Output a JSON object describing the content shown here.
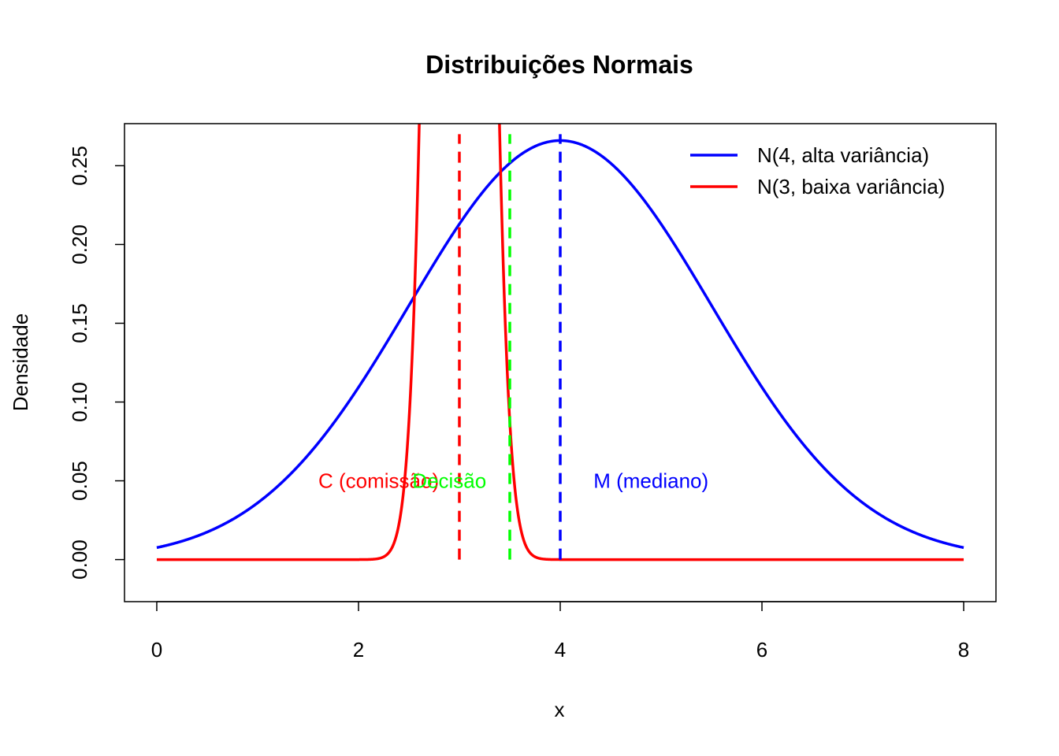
{
  "chart_data": {
    "type": "line",
    "title": "Distribuições Normais",
    "xlabel": "x",
    "ylabel": "Densidade",
    "xlim": [
      -0.32,
      8.32
    ],
    "ylim": [
      -0.0267,
      0.2767
    ],
    "x_ticks": [
      0,
      2,
      4,
      6,
      8
    ],
    "x_tick_labels": [
      "0",
      "2",
      "4",
      "6",
      "8"
    ],
    "y_ticks": [
      0,
      0.05,
      0.1,
      0.15,
      0.2,
      0.25
    ],
    "y_tick_labels": [
      "0.00",
      "0.05",
      "0.10",
      "0.15",
      "0.20",
      "0.25"
    ],
    "grid": false,
    "legend_position": "top-right",
    "series": [
      {
        "name": "N(4, alta variância)",
        "distribution": "normal",
        "mean": 4,
        "sd": 1.5,
        "color": "#0000ff",
        "x_range": [
          0,
          8
        ]
      },
      {
        "name": "N(3, baixa variância)",
        "distribution": "normal",
        "mean": 3,
        "sd": 0.2,
        "color": "#ff0000",
        "x_range": [
          0,
          8
        ]
      }
    ],
    "vlines": [
      {
        "x": 3,
        "color": "#ff0000",
        "style": "dashed"
      },
      {
        "x": 3.5,
        "color": "#00ff00",
        "style": "dashed"
      },
      {
        "x": 4,
        "color": "#0000ff",
        "style": "dashed"
      }
    ],
    "annotations": [
      {
        "text": "C (comissão)",
        "x": 2.2,
        "y": 0.05,
        "color": "#ff0000"
      },
      {
        "text": "Decisão",
        "x": 2.9,
        "y": 0.05,
        "color": "#00ff00"
      },
      {
        "text": "M (mediano)",
        "x": 4.9,
        "y": 0.05,
        "color": "#0000ff"
      }
    ]
  }
}
